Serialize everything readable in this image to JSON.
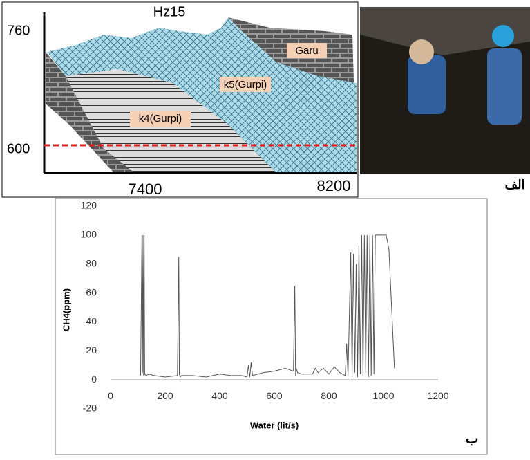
{
  "figure_a": {
    "title": "Hz15",
    "y_labels": [
      760,
      600
    ],
    "x_labels": [
      7400,
      8200
    ],
    "layers": [
      "Garu",
      "k5(Gurpi)",
      "k4(Gurpi)"
    ],
    "panel_label": "الف"
  },
  "chart_data": {
    "type": "line",
    "x_label": "Water (lit/s)",
    "y_label": "CH4(ppm)",
    "panel_label": "ب",
    "xlim": [
      0,
      1200
    ],
    "xticks": [
      0,
      200,
      400,
      600,
      800,
      1000,
      1200
    ],
    "ylim": [
      -20,
      120
    ],
    "yticks": [
      -20,
      0,
      20,
      40,
      60,
      80,
      100,
      120
    ],
    "grid": false,
    "series": [
      {
        "color": "#555555",
        "x": [
          110,
          115,
          117,
          119,
          121,
          123,
          125,
          130,
          140,
          160,
          200,
          245,
          250,
          252,
          255,
          260,
          300,
          350,
          400,
          440,
          480,
          500,
          505,
          510,
          515,
          520,
          560,
          600,
          640,
          670,
          675,
          678,
          680,
          685,
          700,
          740,
          750,
          760,
          780,
          800,
          820,
          840,
          860,
          865,
          870,
          880,
          885,
          890,
          895,
          900,
          905,
          910,
          915,
          920,
          925,
          930,
          935,
          940,
          945,
          950,
          955,
          960,
          965,
          970,
          980,
          990,
          1000,
          1010,
          1020,
          1040
        ],
        "values": [
          3,
          100,
          5,
          100,
          3,
          100,
          4,
          3,
          4,
          3,
          2,
          3,
          85,
          4,
          2,
          3,
          3,
          2,
          4,
          3,
          3,
          2,
          10,
          2,
          12,
          3,
          5,
          6,
          8,
          6,
          65,
          3,
          8,
          5,
          4,
          4,
          8,
          5,
          8,
          4,
          9,
          5,
          3,
          25,
          3,
          88,
          2,
          87,
          5,
          80,
          2,
          93,
          4,
          100,
          3,
          100,
          5,
          100,
          2,
          100,
          3,
          100,
          4,
          100,
          100,
          100,
          100,
          100,
          90,
          8
        ]
      }
    ]
  }
}
